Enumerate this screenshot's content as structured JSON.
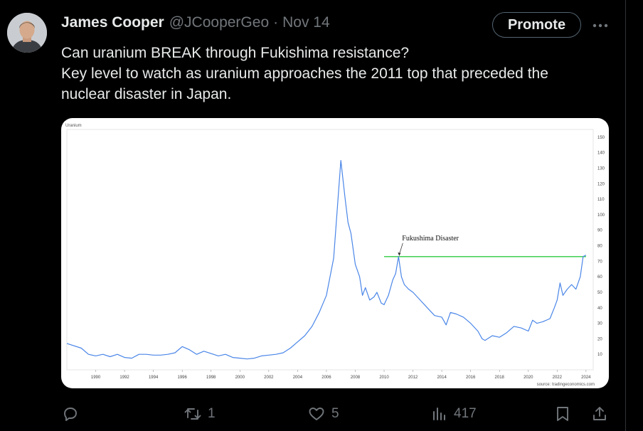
{
  "tweet": {
    "author_name": "James Cooper",
    "handle": "@JCooperGeo",
    "separator": "·",
    "date": "Nov 14",
    "promote_label": "Promote",
    "text_lines": [
      "Can uranium BREAK through Fukishima resistance?",
      "Key level to watch as uranium approaches the 2011 top that preceded the",
      "nuclear disaster in Japan."
    ]
  },
  "actions": {
    "reply_icon": "reply-icon",
    "retweet_icon": "retweet-icon",
    "retweets": "1",
    "like_icon": "heart-icon",
    "likes": "5",
    "views_icon": "views-icon",
    "views": "417",
    "bookmark_icon": "bookmark-icon",
    "share_icon": "share-icon"
  },
  "colors": {
    "background": "#000000",
    "text": "#e7e9ea",
    "muted": "#71767b",
    "line": "#4a86e8",
    "resistance": "#2ecc40"
  },
  "chart_data": {
    "type": "line",
    "title": "Uranium",
    "annotation": "Fukushima Disaster",
    "source": "source: tradingeconomics.com",
    "x_ticks": [
      "1990",
      "1992",
      "1994",
      "1996",
      "1998",
      "2000",
      "2002",
      "2004",
      "2006",
      "2008",
      "2010",
      "2012",
      "2014",
      "2016",
      "2018",
      "2020",
      "2022",
      "2024"
    ],
    "y_ticks": [
      "10",
      "20",
      "30",
      "40",
      "50",
      "60",
      "70",
      "80",
      "90",
      "100",
      "110",
      "120",
      "130",
      "140",
      "150"
    ],
    "xlim": [
      1988,
      2024.5
    ],
    "ylim": [
      0,
      155
    ],
    "resistance": {
      "value": 73,
      "x_start": 2010,
      "x_end": 2024
    },
    "series": [
      {
        "x": [
          1988.0,
          1989.0,
          1989.5,
          1990.0,
          1990.5,
          1991.0,
          1991.5,
          1992.0,
          1992.5,
          1993.0,
          1993.5,
          1994.0,
          1994.5,
          1995.0,
          1995.5,
          1996.0,
          1996.5,
          1997.0,
          1997.5,
          1998.0,
          1998.5,
          1999.0,
          1999.5,
          2000.0,
          2000.5,
          2001.0,
          2001.5,
          2002.0,
          2002.5,
          2003.0,
          2003.5,
          2004.0,
          2004.5,
          2005.0,
          2005.5,
          2006.0,
          2006.5,
          2007.0,
          2007.3,
          2007.5,
          2007.7,
          2008.0,
          2008.3,
          2008.5,
          2008.7,
          2009.0,
          2009.3,
          2009.5,
          2009.8,
          2010.0,
          2010.3,
          2010.6,
          2010.8,
          2011.0,
          2011.2,
          2011.4,
          2011.7,
          2012.0,
          2012.5,
          2013.0,
          2013.5,
          2014.0,
          2014.3,
          2014.6,
          2015.0,
          2015.5,
          2016.0,
          2016.5,
          2016.8,
          2017.0,
          2017.5,
          2018.0,
          2018.5,
          2019.0,
          2019.5,
          2020.0,
          2020.3,
          2020.6,
          2021.0,
          2021.5,
          2021.8,
          2022.0,
          2022.2,
          2022.4,
          2022.7,
          2023.0,
          2023.3,
          2023.6,
          2023.8,
          2024.0
        ],
        "y": [
          17,
          14,
          10,
          9,
          10,
          8.5,
          10,
          8,
          7.5,
          10,
          10,
          9.5,
          9.5,
          10,
          11,
          15,
          13,
          10,
          12,
          10.5,
          9,
          10,
          8,
          7.5,
          7,
          7.5,
          9,
          9.5,
          10,
          11,
          14,
          18,
          22,
          28,
          37,
          48,
          72,
          135,
          110,
          95,
          88,
          68,
          60,
          48,
          53,
          45,
          47,
          50,
          43,
          42,
          48,
          58,
          62,
          73,
          60,
          55,
          52,
          50,
          45,
          40,
          35,
          34,
          29,
          37,
          36,
          34,
          30,
          25,
          20,
          19,
          22,
          21,
          24,
          28,
          27,
          25,
          32,
          30,
          31,
          33,
          40,
          45,
          56,
          48,
          52,
          55,
          52,
          60,
          73,
          74
        ]
      }
    ]
  }
}
